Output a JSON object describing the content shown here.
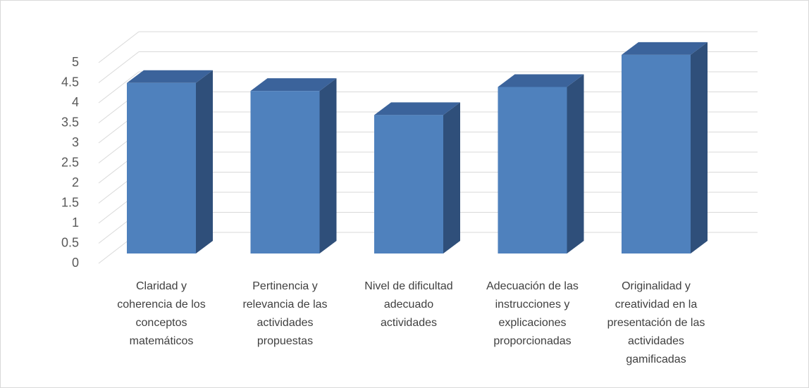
{
  "chart_data": {
    "type": "bar3d",
    "categories": [
      "Claridad y coherencia de los conceptos matemáticos",
      "Pertinencia y relevancia de las actividades propuestas",
      "Nivel de dificultad adecuado actividades",
      "Adecuación de las instrucciones y explicaciones proporcionadas",
      "Originalidad y creatividad en la presentación de las actividades gamificadas"
    ],
    "values": [
      4.25,
      4.05,
      3.45,
      4.15,
      4.95
    ],
    "color": "#4f81bd",
    "ylim": [
      0,
      5
    ],
    "yticks": [
      0,
      {
        "value": 0.5,
        "label": "0.5"
      },
      1,
      {
        "value": 1.5,
        "label": "1.5"
      },
      2,
      {
        "value": 2.5,
        "label": "2.5"
      },
      3,
      {
        "value": 3.5,
        "label": "3.5"
      },
      4,
      {
        "value": 4.5,
        "label": "4.5"
      },
      5
    ],
    "grid": true
  }
}
